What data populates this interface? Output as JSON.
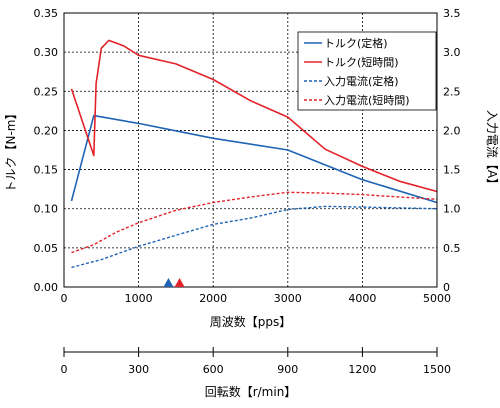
{
  "chart_data": {
    "type": "line",
    "title": "",
    "xlabel": "周波数【pps】",
    "ylabel_left": "トルク【N-m】",
    "ylabel_right": "入力電流【A】",
    "x_secondary_label": "回転数【r/min】",
    "xlim": [
      0,
      5000
    ],
    "ylim_left": [
      0,
      0.35
    ],
    "ylim_right": [
      0,
      3.5
    ],
    "x_secondary_lim": [
      0,
      1500
    ],
    "x_ticks": [
      "0",
      "1000",
      "2000",
      "3000",
      "4000",
      "5000"
    ],
    "x_secondary_ticks": [
      "0",
      "300",
      "600",
      "900",
      "1200",
      "1500"
    ],
    "y_left_ticks": [
      "0.00",
      "0.05",
      "0.10",
      "0.15",
      "0.20",
      "0.25",
      "0.30",
      "0.35"
    ],
    "y_right_ticks": [
      "0",
      "0.5",
      "1.0",
      "1.5",
      "2.0",
      "2.5",
      "3.0",
      "3.5"
    ],
    "grid": "dashed",
    "legend_position": "top-right",
    "series": [
      {
        "name": "トルク(定格)",
        "axis": "left",
        "style": "solid",
        "color": "#1f64b4",
        "points": [
          [
            100,
            0.11
          ],
          [
            400,
            0.219
          ],
          [
            1000,
            0.209
          ],
          [
            2000,
            0.19
          ],
          [
            3000,
            0.175
          ],
          [
            4000,
            0.137
          ],
          [
            5000,
            0.108
          ]
        ]
      },
      {
        "name": "トルク(短時間)",
        "axis": "left",
        "style": "solid",
        "color": "#e3232a",
        "points": [
          [
            100,
            0.253
          ],
          [
            400,
            0.168
          ],
          [
            430,
            0.26
          ],
          [
            500,
            0.305
          ],
          [
            600,
            0.315
          ],
          [
            800,
            0.308
          ],
          [
            1000,
            0.296
          ],
          [
            1500,
            0.285
          ],
          [
            2000,
            0.265
          ],
          [
            2500,
            0.238
          ],
          [
            3000,
            0.217
          ],
          [
            3500,
            0.176
          ],
          [
            4000,
            0.154
          ],
          [
            4500,
            0.135
          ],
          [
            5000,
            0.122
          ]
        ]
      },
      {
        "name": "入力電流(定格)",
        "axis": "right",
        "style": "dashed",
        "color": "#1f64b4",
        "points": [
          [
            100,
            0.25
          ],
          [
            500,
            0.35
          ],
          [
            1000,
            0.52
          ],
          [
            1500,
            0.66
          ],
          [
            2000,
            0.8
          ],
          [
            2500,
            0.88
          ],
          [
            3000,
            0.99
          ],
          [
            3500,
            1.03
          ],
          [
            4000,
            1.02
          ],
          [
            5000,
            1.0
          ]
        ]
      },
      {
        "name": "入力電流(短時間)",
        "axis": "right",
        "style": "dashed",
        "color": "#e3232a",
        "points": [
          [
            100,
            0.44
          ],
          [
            400,
            0.54
          ],
          [
            700,
            0.7
          ],
          [
            1000,
            0.82
          ],
          [
            1500,
            0.98
          ],
          [
            2000,
            1.08
          ],
          [
            2500,
            1.15
          ],
          [
            3000,
            1.21
          ],
          [
            3500,
            1.2
          ],
          [
            4000,
            1.18
          ],
          [
            4500,
            1.15
          ],
          [
            5000,
            1.12
          ]
        ]
      }
    ],
    "markers": [
      {
        "name": "rated-marker",
        "x": 1400,
        "color": "#1f64b4"
      },
      {
        "name": "short-time-marker",
        "x": 1550,
        "color": "#e3232a"
      }
    ]
  }
}
